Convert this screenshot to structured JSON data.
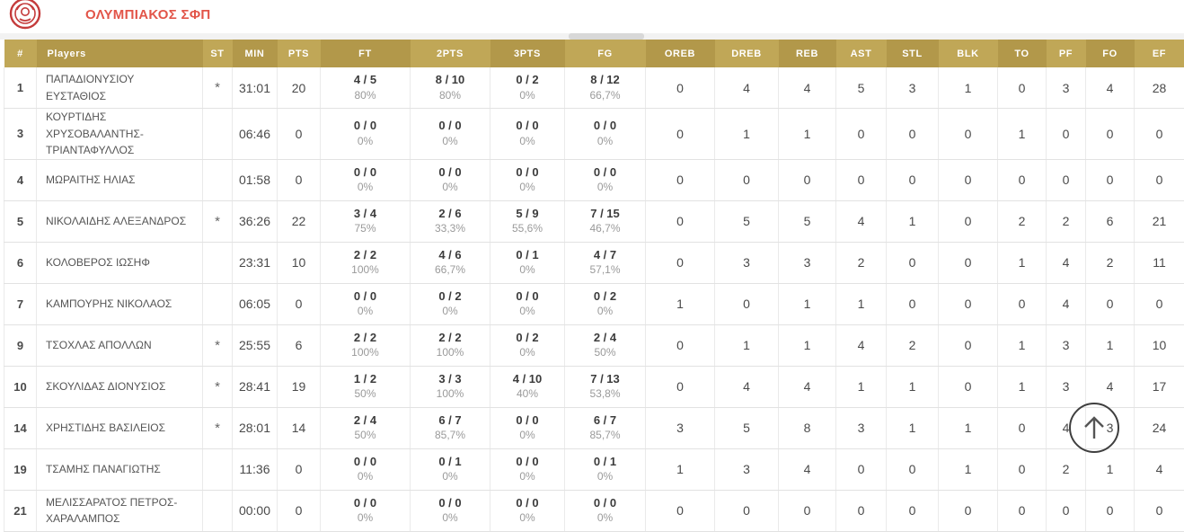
{
  "team": {
    "name": "ΟΛΥΜΠΙΑΚΟΣ ΣΦΠ"
  },
  "colors": {
    "header_light": "#c0a757",
    "header_dark": "#b2984a",
    "team_name": "#e25549",
    "logo_red": "#c43b3b"
  },
  "icons": {
    "team_logo": "olympiacos-crest",
    "scroll_top": "arrow-up-icon"
  },
  "table": {
    "columns": [
      "#",
      "Players",
      "ST",
      "MIN",
      "PTS",
      "FT",
      "2PTS",
      "3PTS",
      "FG",
      "OREB",
      "DREB",
      "REB",
      "AST",
      "STL",
      "BLK",
      "TO",
      "PF",
      "FO",
      "EF"
    ],
    "players": [
      {
        "number": "1",
        "name": "ΠΑΠΑΔΙΟΝΥΣΙΟΥ ΕΥΣΤΑΘΙΟΣ",
        "starter": "*",
        "min": "31:01",
        "pts": "20",
        "ft": {
          "made": "4 / 5",
          "pct": "80%"
        },
        "p2": {
          "made": "8 / 10",
          "pct": "80%"
        },
        "p3": {
          "made": "0 / 2",
          "pct": "0%"
        },
        "fg": {
          "made": "8 / 12",
          "pct": "66,7%"
        },
        "oreb": "0",
        "dreb": "4",
        "reb": "4",
        "ast": "5",
        "stl": "3",
        "blk": "1",
        "to": "0",
        "pf": "3",
        "fo": "4",
        "ef": "28"
      },
      {
        "number": "3",
        "name": "ΚΟΥΡΤΙΔΗΣ ΧΡΥΣΟΒΑΛΑΝΤΗΣ-ΤΡΙΑΝΤΑΦΥΛΛΟΣ",
        "starter": "",
        "min": "06:46",
        "pts": "0",
        "ft": {
          "made": "0 / 0",
          "pct": "0%"
        },
        "p2": {
          "made": "0 / 0",
          "pct": "0%"
        },
        "p3": {
          "made": "0 / 0",
          "pct": "0%"
        },
        "fg": {
          "made": "0 / 0",
          "pct": "0%"
        },
        "oreb": "0",
        "dreb": "1",
        "reb": "1",
        "ast": "0",
        "stl": "0",
        "blk": "0",
        "to": "1",
        "pf": "0",
        "fo": "0",
        "ef": "0"
      },
      {
        "number": "4",
        "name": "ΜΩΡΑΙΤΗΣ ΗΛΙΑΣ",
        "starter": "",
        "min": "01:58",
        "pts": "0",
        "ft": {
          "made": "0 / 0",
          "pct": "0%"
        },
        "p2": {
          "made": "0 / 0",
          "pct": "0%"
        },
        "p3": {
          "made": "0 / 0",
          "pct": "0%"
        },
        "fg": {
          "made": "0 / 0",
          "pct": "0%"
        },
        "oreb": "0",
        "dreb": "0",
        "reb": "0",
        "ast": "0",
        "stl": "0",
        "blk": "0",
        "to": "0",
        "pf": "0",
        "fo": "0",
        "ef": "0"
      },
      {
        "number": "5",
        "name": "ΝΙΚΟΛΑΙΔΗΣ ΑΛΕΞΑΝΔΡΟΣ",
        "starter": "*",
        "min": "36:26",
        "pts": "22",
        "ft": {
          "made": "3 / 4",
          "pct": "75%"
        },
        "p2": {
          "made": "2 / 6",
          "pct": "33,3%"
        },
        "p3": {
          "made": "5 / 9",
          "pct": "55,6%"
        },
        "fg": {
          "made": "7 / 15",
          "pct": "46,7%"
        },
        "oreb": "0",
        "dreb": "5",
        "reb": "5",
        "ast": "4",
        "stl": "1",
        "blk": "0",
        "to": "2",
        "pf": "2",
        "fo": "6",
        "ef": "21"
      },
      {
        "number": "6",
        "name": "ΚΟΛΟΒΕΡΟΣ ΙΩΣΗΦ",
        "starter": "",
        "min": "23:31",
        "pts": "10",
        "ft": {
          "made": "2 / 2",
          "pct": "100%"
        },
        "p2": {
          "made": "4 / 6",
          "pct": "66,7%"
        },
        "p3": {
          "made": "0 / 1",
          "pct": "0%"
        },
        "fg": {
          "made": "4 / 7",
          "pct": "57,1%"
        },
        "oreb": "0",
        "dreb": "3",
        "reb": "3",
        "ast": "2",
        "stl": "0",
        "blk": "0",
        "to": "1",
        "pf": "4",
        "fo": "2",
        "ef": "11"
      },
      {
        "number": "7",
        "name": "ΚΑΜΠΟΥΡΗΣ ΝΙΚΟΛΑΟΣ",
        "starter": "",
        "min": "06:05",
        "pts": "0",
        "ft": {
          "made": "0 / 0",
          "pct": "0%"
        },
        "p2": {
          "made": "0 / 2",
          "pct": "0%"
        },
        "p3": {
          "made": "0 / 0",
          "pct": "0%"
        },
        "fg": {
          "made": "0 / 2",
          "pct": "0%"
        },
        "oreb": "1",
        "dreb": "0",
        "reb": "1",
        "ast": "1",
        "stl": "0",
        "blk": "0",
        "to": "0",
        "pf": "4",
        "fo": "0",
        "ef": "0"
      },
      {
        "number": "9",
        "name": "ΤΣΟΧΛΑΣ ΑΠΟΛΛΩΝ",
        "starter": "*",
        "min": "25:55",
        "pts": "6",
        "ft": {
          "made": "2 / 2",
          "pct": "100%"
        },
        "p2": {
          "made": "2 / 2",
          "pct": "100%"
        },
        "p3": {
          "made": "0 / 2",
          "pct": "0%"
        },
        "fg": {
          "made": "2 / 4",
          "pct": "50%"
        },
        "oreb": "0",
        "dreb": "1",
        "reb": "1",
        "ast": "4",
        "stl": "2",
        "blk": "0",
        "to": "1",
        "pf": "3",
        "fo": "1",
        "ef": "10"
      },
      {
        "number": "10",
        "name": "ΣΚΟΥΛΙΔΑΣ ΔΙΟΝΥΣΙΟΣ",
        "starter": "*",
        "min": "28:41",
        "pts": "19",
        "ft": {
          "made": "1 / 2",
          "pct": "50%"
        },
        "p2": {
          "made": "3 / 3",
          "pct": "100%"
        },
        "p3": {
          "made": "4 / 10",
          "pct": "40%"
        },
        "fg": {
          "made": "7 / 13",
          "pct": "53,8%"
        },
        "oreb": "0",
        "dreb": "4",
        "reb": "4",
        "ast": "1",
        "stl": "1",
        "blk": "0",
        "to": "1",
        "pf": "3",
        "fo": "4",
        "ef": "17"
      },
      {
        "number": "14",
        "name": "ΧΡΗΣΤΙΔΗΣ ΒΑΣΙΛΕΙΟΣ",
        "starter": "*",
        "min": "28:01",
        "pts": "14",
        "ft": {
          "made": "2 / 4",
          "pct": "50%"
        },
        "p2": {
          "made": "6 / 7",
          "pct": "85,7%"
        },
        "p3": {
          "made": "0 / 0",
          "pct": "0%"
        },
        "fg": {
          "made": "6 / 7",
          "pct": "85,7%"
        },
        "oreb": "3",
        "dreb": "5",
        "reb": "8",
        "ast": "3",
        "stl": "1",
        "blk": "1",
        "to": "0",
        "pf": "4",
        "fo": "3",
        "ef": "24"
      },
      {
        "number": "19",
        "name": "ΤΣΑΜΗΣ ΠΑΝΑΓΙΩΤΗΣ",
        "starter": "",
        "min": "11:36",
        "pts": "0",
        "ft": {
          "made": "0 / 0",
          "pct": "0%"
        },
        "p2": {
          "made": "0 / 1",
          "pct": "0%"
        },
        "p3": {
          "made": "0 / 0",
          "pct": "0%"
        },
        "fg": {
          "made": "0 / 1",
          "pct": "0%"
        },
        "oreb": "1",
        "dreb": "3",
        "reb": "4",
        "ast": "0",
        "stl": "0",
        "blk": "1",
        "to": "0",
        "pf": "2",
        "fo": "1",
        "ef": "4"
      },
      {
        "number": "21",
        "name": "ΜΕΛΙΣΣΑΡΑΤΟΣ ΠΕΤΡΟΣ-ΧΑΡΑΛΑΜΠΟΣ",
        "starter": "",
        "min": "00:00",
        "pts": "0",
        "ft": {
          "made": "0 / 0",
          "pct": "0%"
        },
        "p2": {
          "made": "0 / 0",
          "pct": "0%"
        },
        "p3": {
          "made": "0 / 0",
          "pct": "0%"
        },
        "fg": {
          "made": "0 / 0",
          "pct": "0%"
        },
        "oreb": "0",
        "dreb": "0",
        "reb": "0",
        "ast": "0",
        "stl": "0",
        "blk": "0",
        "to": "0",
        "pf": "0",
        "fo": "0",
        "ef": "0"
      }
    ]
  }
}
